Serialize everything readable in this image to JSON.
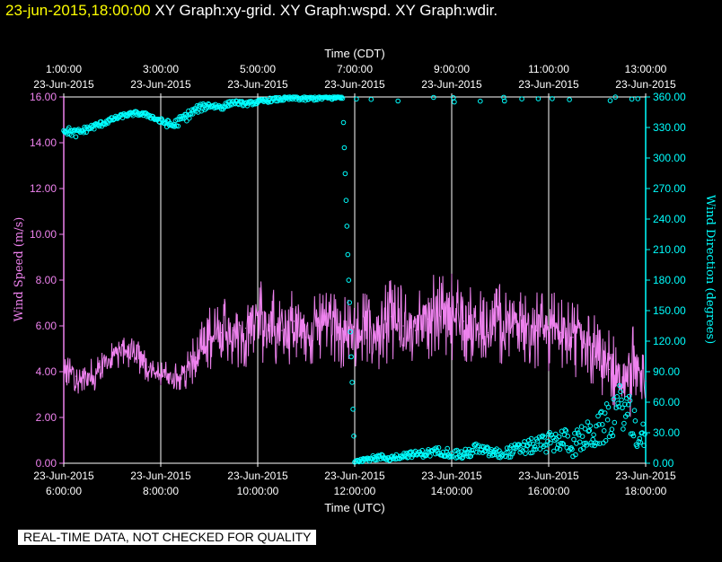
{
  "header": {
    "timestamp": "23-jun-2015,18:00:00",
    "graphs": [
      "XY Graph:xy-grid.",
      "XY Graph:wspd.",
      "XY Graph:wdir."
    ]
  },
  "notice": "REAL-TIME DATA, NOT CHECKED FOR QUALITY",
  "colors": {
    "wind_speed": "#ee82ee",
    "wind_direction": "#00ffff",
    "grid": "#ffffff",
    "timestamp": "#ffff00",
    "background": "#000000"
  },
  "chart_data": {
    "type": "line",
    "top_axis": {
      "title": "Time (CDT)",
      "ticks": [
        {
          "time": "1:00:00",
          "date": "23-Jun-2015"
        },
        {
          "time": "3:00:00",
          "date": "23-Jun-2015"
        },
        {
          "time": "5:00:00",
          "date": "23-Jun-2015"
        },
        {
          "time": "7:00:00",
          "date": "23-Jun-2015"
        },
        {
          "time": "9:00:00",
          "date": "23-Jun-2015"
        },
        {
          "time": "11:00:00",
          "date": "23-Jun-2015"
        },
        {
          "time": "13:00:00",
          "date": "23-Jun-2015"
        }
      ]
    },
    "bottom_axis": {
      "title": "Time (UTC)",
      "ticks": [
        {
          "date": "23-Jun-2015",
          "time": "6:00:00"
        },
        {
          "date": "23-Jun-2015",
          "time": "8:00:00"
        },
        {
          "date": "23-Jun-2015",
          "time": "10:00:00"
        },
        {
          "date": "23-Jun-2015",
          "time": "12:00:00"
        },
        {
          "date": "23-Jun-2015",
          "time": "14:00:00"
        },
        {
          "date": "23-Jun-2015",
          "time": "16:00:00"
        },
        {
          "date": "23-Jun-2015",
          "time": "18:00:00"
        }
      ],
      "range_hours_utc": [
        6,
        18
      ]
    },
    "left_axis": {
      "title": "Wind Speed (m/s)",
      "ticks": [
        "0.00",
        "2.00",
        "4.00",
        "6.00",
        "8.00",
        "10.00",
        "12.00",
        "14.00",
        "16.00"
      ],
      "range": [
        0,
        16
      ]
    },
    "right_axis": {
      "title": "Wind Direction (degrees)",
      "ticks": [
        "0.00",
        "30.00",
        "60.00",
        "90.00",
        "120.00",
        "150.00",
        "180.00",
        "210.00",
        "240.00",
        "270.00",
        "300.00",
        "330.00",
        "360.00"
      ],
      "range": [
        0,
        360
      ]
    },
    "grid": true,
    "series": [
      {
        "name": "Wind Speed (m/s)",
        "style": "line",
        "axis": "left",
        "x_hours_utc": [
          6.0,
          6.25,
          6.5,
          6.75,
          7.0,
          7.25,
          7.5,
          7.75,
          8.0,
          8.25,
          8.5,
          8.75,
          9.0,
          9.25,
          9.5,
          9.75,
          10.0,
          10.25,
          10.5,
          10.75,
          11.0,
          11.25,
          11.5,
          11.75,
          12.0,
          12.25,
          12.5,
          12.75,
          13.0,
          13.25,
          13.5,
          13.75,
          14.0,
          14.25,
          14.5,
          14.75,
          15.0,
          15.25,
          15.5,
          15.75,
          16.0,
          16.25,
          16.5,
          16.75,
          17.0,
          17.25,
          17.5,
          17.75,
          18.0
        ],
        "values": [
          4.3,
          3.8,
          3.6,
          4.2,
          4.7,
          5.0,
          4.8,
          4.2,
          3.8,
          3.7,
          4.0,
          4.6,
          5.4,
          5.7,
          5.8,
          5.9,
          6.3,
          6.0,
          5.8,
          6.2,
          5.5,
          6.0,
          6.3,
          5.9,
          5.6,
          6.0,
          5.8,
          6.4,
          6.0,
          5.8,
          6.3,
          6.5,
          6.6,
          6.2,
          6.1,
          5.7,
          6.3,
          6.0,
          5.9,
          5.8,
          6.0,
          5.7,
          5.5,
          5.2,
          4.8,
          4.1,
          3.4,
          3.9,
          3.6
        ],
        "range_min": [
          3.2,
          3.1,
          2.8,
          3.3,
          4.0,
          4.2,
          3.9,
          3.5,
          3.4,
          3.2,
          3.2,
          3.6,
          4.0,
          4.2,
          4.0,
          4.2,
          4.4,
          4.3,
          4.1,
          4.3,
          4.1,
          4.4,
          4.6,
          4.1,
          4.2,
          4.3,
          4.0,
          4.5,
          4.5,
          4.3,
          4.5,
          4.8,
          4.5,
          4.4,
          4.4,
          4.1,
          4.3,
          4.4,
          4.0,
          4.1,
          4.0,
          4.2,
          3.8,
          3.2,
          3.2,
          2.5,
          1.8,
          2.1,
          2.6
        ],
        "range_max": [
          4.8,
          4.5,
          4.4,
          5.0,
          5.3,
          5.6,
          5.6,
          4.8,
          4.5,
          4.4,
          4.8,
          5.8,
          6.9,
          7.4,
          7.6,
          7.8,
          8.1,
          7.8,
          7.3,
          7.9,
          6.9,
          7.6,
          7.8,
          7.4,
          7.1,
          7.6,
          7.3,
          8.6,
          7.8,
          7.5,
          8.3,
          8.2,
          8.6,
          8.1,
          7.8,
          7.3,
          8.2,
          7.6,
          7.5,
          7.8,
          7.6,
          7.3,
          7.1,
          7.0,
          6.4,
          5.8,
          5.2,
          6.4,
          5.3
        ]
      },
      {
        "name": "Wind Direction (degrees)",
        "style": "scatter",
        "axis": "right",
        "note": "values near 0 deg are wrap-around of ~360 deg",
        "x_hours_utc": [
          6.0,
          6.25,
          6.5,
          6.75,
          7.0,
          7.25,
          7.5,
          7.75,
          8.0,
          8.25,
          8.5,
          8.75,
          9.0,
          9.25,
          9.5,
          9.75,
          10.0,
          10.25,
          10.5,
          10.75,
          11.0,
          11.25,
          11.5,
          11.75,
          12.0,
          12.25,
          12.5,
          12.75,
          13.0,
          13.25,
          13.5,
          13.75,
          14.0,
          14.25,
          14.5,
          14.75,
          15.0,
          15.25,
          15.5,
          15.75,
          16.0,
          16.25,
          16.5,
          16.75,
          17.0,
          17.25,
          17.5,
          17.75,
          18.0
        ],
        "values": [
          328,
          324,
          329,
          333,
          338,
          342,
          344,
          342,
          336,
          332,
          340,
          348,
          352,
          350,
          355,
          353,
          355,
          357,
          358,
          359,
          358,
          359,
          359,
          360,
          3,
          4,
          6,
          5,
          8,
          9,
          10,
          12,
          10,
          8,
          14,
          11,
          9,
          12,
          15,
          18,
          20,
          24,
          18,
          26,
          30,
          42,
          58,
          38,
          20
        ],
        "spread": [
          4,
          4,
          3,
          3,
          2,
          2,
          2,
          2,
          3,
          4,
          5,
          4,
          3,
          3,
          2,
          2,
          2,
          2,
          2,
          2,
          2,
          2,
          2,
          2,
          2,
          2,
          3,
          3,
          3,
          3,
          4,
          4,
          5,
          5,
          6,
          5,
          5,
          6,
          7,
          8,
          10,
          12,
          12,
          14,
          16,
          20,
          22,
          20,
          15
        ]
      }
    ]
  }
}
